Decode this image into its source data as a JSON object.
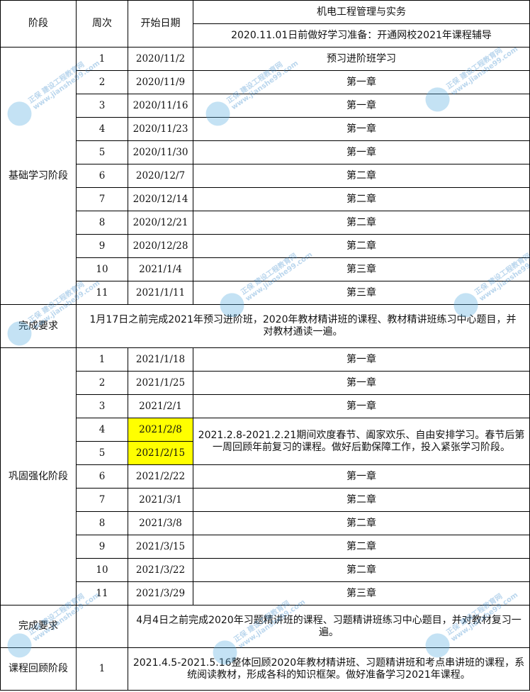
{
  "header": {
    "stage": "阶段",
    "week": "周次",
    "start_date": "开始日期",
    "subject": "机电工程管理与实务",
    "preparation": "2020.11.01日前做好学习准备：开通网校2021年课程辅导"
  },
  "basic_stage": {
    "label": "基础学习阶段",
    "rows": [
      {
        "week": "1",
        "date": "2020/11/2",
        "content": "预习进阶班学习"
      },
      {
        "week": "2",
        "date": "2020/11/9",
        "content": "第一章"
      },
      {
        "week": "3",
        "date": "2020/11/16",
        "content": "第一章"
      },
      {
        "week": "4",
        "date": "2020/11/23",
        "content": "第一章"
      },
      {
        "week": "5",
        "date": "2020/11/30",
        "content": "第一章"
      },
      {
        "week": "6",
        "date": "2020/12/7",
        "content": "第二章"
      },
      {
        "week": "7",
        "date": "2020/12/14",
        "content": "第二章"
      },
      {
        "week": "8",
        "date": "2020/12/21",
        "content": "第二章"
      },
      {
        "week": "9",
        "date": "2020/12/28",
        "content": "第二章"
      },
      {
        "week": "10",
        "date": "2021/1/4",
        "content": "第三章"
      },
      {
        "week": "11",
        "date": "2021/1/11",
        "content": "第三章"
      }
    ],
    "requirement_label": "完成要求",
    "requirement": "1月17日之前完成2021年预习进阶班，2020年教材精讲班的课程、教材精讲班练习中心题目，并对教材通读一遍。"
  },
  "consolidation_stage": {
    "label": "巩固强化阶段",
    "rows": [
      {
        "week": "1",
        "date": "2021/1/18",
        "content": "第一章"
      },
      {
        "week": "2",
        "date": "2021/1/25",
        "content": "第一章"
      },
      {
        "week": "3",
        "date": "2021/2/1",
        "content": "第一章"
      },
      {
        "week": "4",
        "date": "2021/2/8",
        "highlight": true
      },
      {
        "week": "5",
        "date": "2021/2/15",
        "highlight": true
      },
      {
        "week": "6",
        "date": "2021/2/22",
        "content": "第一章"
      },
      {
        "week": "7",
        "date": "2021/3/1",
        "content": "第二章"
      },
      {
        "week": "8",
        "date": "2021/3/8",
        "content": "第二章"
      },
      {
        "week": "9",
        "date": "2021/3/15",
        "content": "第二章"
      },
      {
        "week": "10",
        "date": "2021/3/22",
        "content": "第二章"
      },
      {
        "week": "11",
        "date": "2021/3/29",
        "content": "第三章"
      }
    ],
    "holiday_note": "2021.2.8-2021.2.21期间欢度春节、阖家欢乐、自由安排学习。春节后第一周回顾年前复习的课程。做好后勤保障工作，投入紧张学习阶段。",
    "requirement_label": "完成要求",
    "requirement": "4月4日之前完成2020年习题精讲班的课程、习题精讲班练习中心题目，并对教材复习一遍。"
  },
  "review_stage": {
    "label": "课程回顾阶段",
    "week": "1",
    "content": "2021.4.5-2021.5.16整体回顾2020年教材精讲班、习题精讲班和考点串讲班的课程，系统阅读教材，形成各科的知识框架。做好准备学习2021年课程。"
  },
  "colors": {
    "highlight": "#ffff00",
    "watermark": "#5aaee0"
  },
  "watermark": {
    "brand": "正保",
    "site": "建设工程教育网",
    "url": "www.jianshe99.com"
  }
}
